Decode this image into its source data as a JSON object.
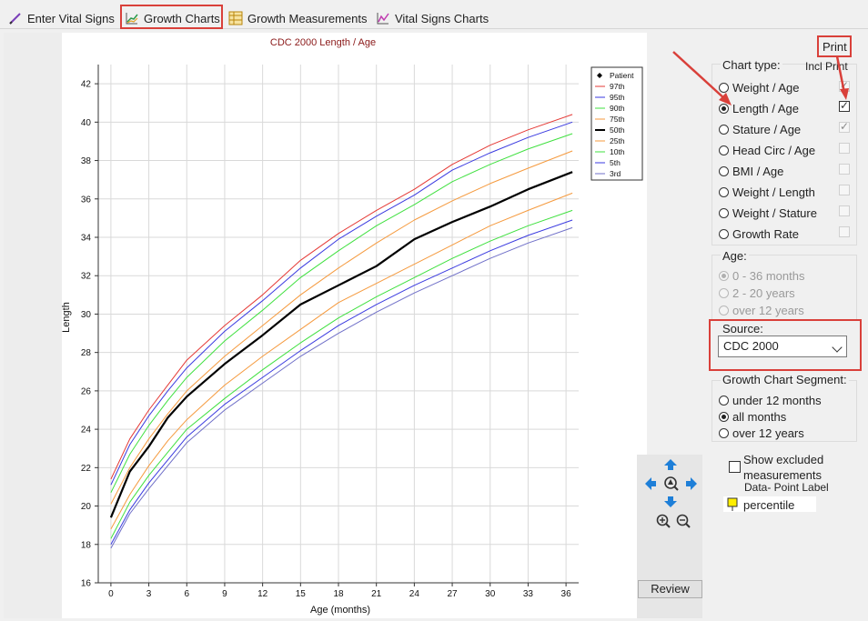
{
  "tabs": [
    {
      "label": "Enter Vital Signs",
      "icon": "pencil-icon"
    },
    {
      "label": "Growth Charts",
      "icon": "growth-chart-icon"
    },
    {
      "label": "Growth Measurements",
      "icon": "table-grid-icon"
    },
    {
      "label": "Vital Signs Charts",
      "icon": "line-chart-icon"
    }
  ],
  "print_label": "Print",
  "chart_type": {
    "label": "Chart type:",
    "incl_print_label": "Incl Print",
    "options": [
      {
        "label": "Weight / Age",
        "selected": false,
        "incl_print": true
      },
      {
        "label": "Length / Age",
        "selected": true,
        "incl_print": true
      },
      {
        "label": "Stature / Age",
        "selected": false,
        "incl_print": true
      },
      {
        "label": "Head Circ / Age",
        "selected": false,
        "incl_print": false
      },
      {
        "label": "BMI / Age",
        "selected": false,
        "incl_print": false
      },
      {
        "label": "Weight / Length",
        "selected": false,
        "incl_print": false
      },
      {
        "label": "Weight / Stature",
        "selected": false,
        "incl_print": false
      },
      {
        "label": "Growth Rate",
        "selected": false,
        "incl_print": false
      }
    ]
  },
  "age": {
    "label": "Age:",
    "options": [
      {
        "label": "0 - 36 months",
        "selected": true
      },
      {
        "label": "2 - 20 years",
        "selected": false
      },
      {
        "label": "over 12 years",
        "selected": false
      }
    ]
  },
  "source": {
    "label": "Source:",
    "value": "CDC 2000"
  },
  "segment": {
    "label": "Growth Chart Segment:",
    "options": [
      {
        "label": "under 12 months",
        "selected": false
      },
      {
        "label": "all months",
        "selected": true
      },
      {
        "label": "over 12 years",
        "selected": false
      }
    ]
  },
  "show_excluded": {
    "line1": "Show excluded",
    "line2": "measurements",
    "checked": false
  },
  "data_point_label": {
    "title": "Data- Point Label",
    "value": "percentile"
  },
  "review_label": "Review",
  "annotation_color": "#d9403a",
  "chart_data": {
    "type": "line",
    "title": "CDC 2000 Length / Age",
    "xlabel": "Age (months)",
    "ylabel": "Length",
    "xlim": [
      -1,
      37
    ],
    "ylim": [
      16,
      43
    ],
    "xticks": [
      0,
      3,
      6,
      9,
      12,
      15,
      18,
      21,
      24,
      27,
      30,
      33,
      36
    ],
    "yticks": [
      16,
      18,
      20,
      22,
      24,
      26,
      28,
      30,
      32,
      34,
      36,
      38,
      40,
      42
    ],
    "grid": true,
    "legend_position": "top-right",
    "x": [
      0,
      1.5,
      3,
      4.5,
      6,
      9,
      12,
      15,
      18,
      21,
      24,
      27,
      30,
      33,
      36.5
    ],
    "patient_label": "Patient",
    "series": [
      {
        "name": "97th",
        "color": "#e53935",
        "values": [
          21.4,
          23.5,
          25.0,
          26.3,
          27.6,
          29.4,
          31.0,
          32.8,
          34.2,
          35.4,
          36.5,
          37.8,
          38.8,
          39.6,
          40.4
        ]
      },
      {
        "name": "95th",
        "color": "#3a3ae0",
        "values": [
          21.1,
          23.2,
          24.7,
          26.0,
          27.2,
          29.1,
          30.7,
          32.4,
          33.9,
          35.1,
          36.2,
          37.5,
          38.4,
          39.2,
          40.0
        ]
      },
      {
        "name": "90th",
        "color": "#3fe03f",
        "values": [
          20.7,
          22.7,
          24.2,
          25.5,
          26.7,
          28.6,
          30.2,
          31.9,
          33.3,
          34.6,
          35.7,
          36.9,
          37.8,
          38.6,
          39.4
        ]
      },
      {
        "name": "75th",
        "color": "#f59a3e",
        "values": [
          20.1,
          22.0,
          23.5,
          24.8,
          26.0,
          27.8,
          29.4,
          31.0,
          32.4,
          33.7,
          34.9,
          35.9,
          36.8,
          37.6,
          38.5
        ]
      },
      {
        "name": "50th",
        "color": "#000000",
        "values": [
          19.4,
          21.8,
          23.1,
          24.6,
          25.7,
          27.4,
          28.9,
          30.5,
          31.5,
          32.5,
          33.9,
          34.8,
          35.6,
          36.5,
          37.4
        ]
      },
      {
        "name": "25th",
        "color": "#f59a3e",
        "values": [
          18.8,
          20.6,
          22.1,
          23.4,
          24.5,
          26.3,
          27.8,
          29.2,
          30.6,
          31.6,
          32.6,
          33.6,
          34.6,
          35.4,
          36.3
        ]
      },
      {
        "name": "10th",
        "color": "#3fe03f",
        "values": [
          18.3,
          20.2,
          21.6,
          22.8,
          24.0,
          25.6,
          27.1,
          28.5,
          29.8,
          30.9,
          31.9,
          32.9,
          33.8,
          34.6,
          35.4
        ]
      },
      {
        "name": "5th",
        "color": "#3a3ae0",
        "values": [
          18.0,
          19.8,
          21.2,
          22.4,
          23.6,
          25.3,
          26.7,
          28.1,
          29.4,
          30.5,
          31.5,
          32.4,
          33.3,
          34.1,
          34.9
        ]
      },
      {
        "name": "3rd",
        "color": "#6f6fc8",
        "values": [
          17.8,
          19.6,
          20.9,
          22.1,
          23.3,
          25.0,
          26.4,
          27.8,
          29.0,
          30.1,
          31.1,
          32.0,
          32.9,
          33.7,
          34.5
        ]
      }
    ]
  }
}
